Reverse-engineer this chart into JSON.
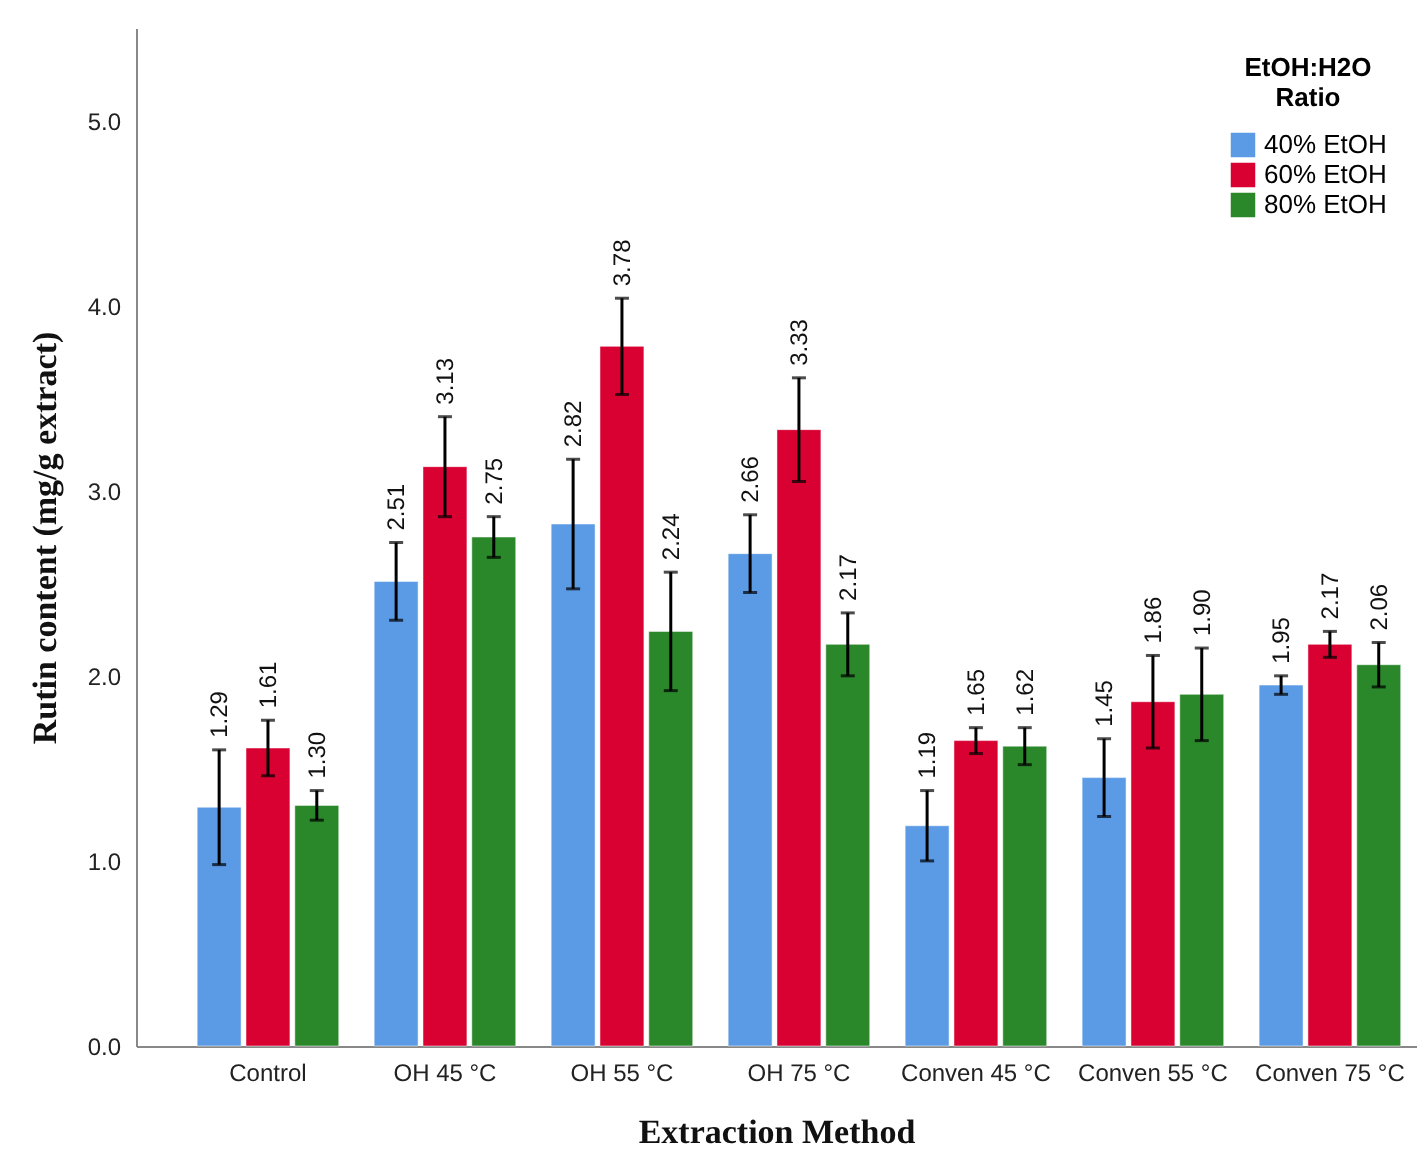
{
  "chart_data": {
    "type": "bar",
    "xlabel": "Extraction Method",
    "ylabel": "Rutin content (mg/g extract)",
    "legend_title": "EtOH:H2O Ratio",
    "legend": "top right",
    "grid": false,
    "categories": [
      "Control",
      "OH 45 °C",
      "OH 55 °C",
      "OH 75 °C",
      "Conven 45 °C",
      "Conven 55 °C",
      "Conven 75 °C"
    ],
    "ylim": [
      0,
      5.5
    ],
    "yticks": [
      {
        "value": 0,
        "label": "0.0"
      },
      {
        "value": 1,
        "label": "1.0"
      },
      {
        "value": 2,
        "label": "2.0"
      },
      {
        "value": 3,
        "label": "3.0"
      },
      {
        "value": 4,
        "label": "4.0"
      },
      {
        "value": 5,
        "label": "5.0"
      }
    ],
    "series": [
      {
        "name": "40% EtOH",
        "color": "#5b9be6",
        "values": [
          1.29,
          2.51,
          2.82,
          2.66,
          1.19,
          1.45,
          1.95
        ],
        "errors": [
          0.31,
          0.21,
          0.35,
          0.21,
          0.19,
          0.21,
          0.05
        ],
        "value_labels": [
          "1.29",
          "2.51",
          "2.82",
          "2.66",
          "1.19",
          "1.45",
          "1.95"
        ]
      },
      {
        "name": "60% EtOH",
        "color": "#d90032",
        "values": [
          1.61,
          3.13,
          3.78,
          3.33,
          1.65,
          1.86,
          2.17
        ],
        "errors": [
          0.15,
          0.27,
          0.26,
          0.28,
          0.07,
          0.25,
          0.07
        ],
        "value_labels": [
          "1.61",
          "3.13",
          "3.78",
          "3.33",
          "1.65",
          "1.86",
          "2.17"
        ]
      },
      {
        "name": "80% EtOH",
        "color": "#2a882a",
        "values": [
          1.3,
          2.75,
          2.24,
          2.17,
          1.62,
          1.9,
          2.06
        ],
        "errors": [
          0.08,
          0.11,
          0.32,
          0.17,
          0.1,
          0.25,
          0.12
        ],
        "value_labels": [
          "1.30",
          "2.75",
          "2.24",
          "2.17",
          "1.62",
          "1.90",
          "2.06"
        ]
      }
    ]
  }
}
